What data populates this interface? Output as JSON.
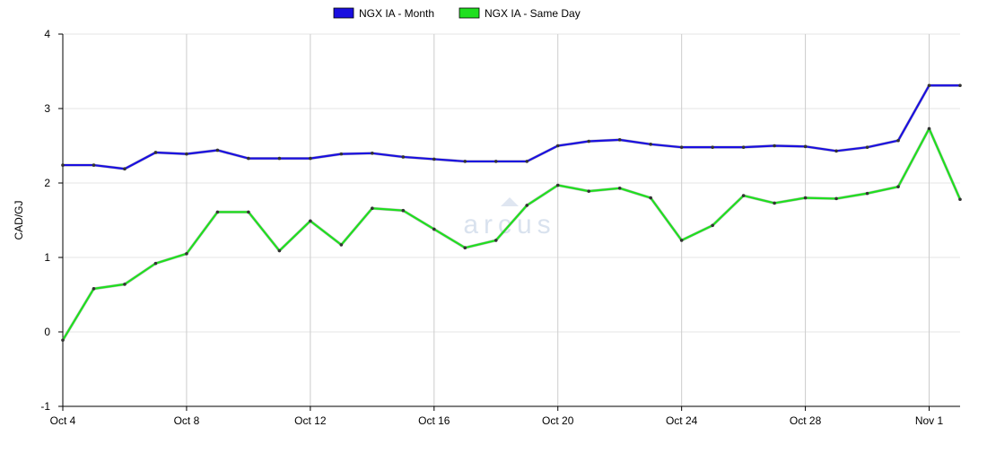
{
  "chart_data": {
    "type": "line",
    "title": "",
    "xlabel": "",
    "ylabel": "CAD/GJ",
    "ylim": [
      -1,
      4
    ],
    "yticks": [
      -1,
      0,
      1,
      2,
      3,
      4
    ],
    "x": [
      "Oct 4",
      "Oct 5",
      "Oct 6",
      "Oct 7",
      "Oct 8",
      "Oct 9",
      "Oct 10",
      "Oct 11",
      "Oct 12",
      "Oct 13",
      "Oct 14",
      "Oct 15",
      "Oct 16",
      "Oct 17",
      "Oct 18",
      "Oct 19",
      "Oct 20",
      "Oct 21",
      "Oct 22",
      "Oct 23",
      "Oct 24",
      "Oct 25",
      "Oct 26",
      "Oct 27",
      "Oct 28",
      "Oct 29",
      "Oct 30",
      "Oct 31",
      "Nov 1",
      "Nov 2"
    ],
    "xtick_labels": [
      "Oct 4",
      "Oct 8",
      "Oct 12",
      "Oct 16",
      "Oct 20",
      "Oct 24",
      "Oct 28",
      "Nov 1"
    ],
    "xtick_index": [
      0,
      4,
      8,
      12,
      16,
      20,
      24,
      28
    ],
    "grid": true,
    "legend_position": "top-center",
    "series": [
      {
        "name": "NGX IA - Month",
        "color": "#1a0fe0",
        "values": [
          2.24,
          2.24,
          2.19,
          2.41,
          2.39,
          2.44,
          2.33,
          2.33,
          2.33,
          2.39,
          2.4,
          2.35,
          2.32,
          2.29,
          2.29,
          2.29,
          2.5,
          2.56,
          2.58,
          2.52,
          2.48,
          2.48,
          2.48,
          2.5,
          2.49,
          2.43,
          2.48,
          2.57,
          3.31,
          3.31
        ]
      },
      {
        "name": "NGX IA - Same Day",
        "color": "#1fdf1f",
        "values": [
          -0.11,
          0.58,
          0.64,
          0.92,
          1.05,
          1.61,
          1.61,
          1.09,
          1.49,
          1.17,
          1.66,
          1.63,
          1.38,
          1.13,
          1.23,
          1.7,
          1.97,
          1.89,
          1.93,
          1.8,
          1.23,
          1.43,
          1.83,
          1.73,
          1.8,
          1.79,
          1.86,
          1.95,
          2.73,
          1.78
        ]
      }
    ],
    "watermark": "arcus"
  }
}
